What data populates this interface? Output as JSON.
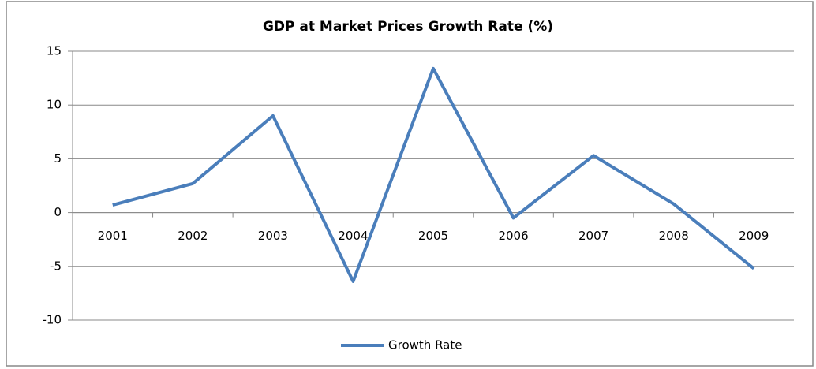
{
  "chart_data": {
    "type": "line",
    "title": "GDP at Market Prices Growth Rate (%)",
    "categories": [
      "2001",
      "2002",
      "2003",
      "2004",
      "2005",
      "2006",
      "2007",
      "2008",
      "2009"
    ],
    "series": [
      {
        "name": "Growth Rate",
        "color": "#4a7ebb",
        "values": [
          0.7,
          2.7,
          9.0,
          -6.4,
          13.4,
          -0.5,
          5.3,
          0.8,
          -5.2
        ]
      }
    ],
    "ylim": [
      -10,
      15
    ],
    "yticks": [
      -10,
      -5,
      0,
      5,
      10,
      15
    ],
    "grid": true,
    "legend": "bottom"
  }
}
